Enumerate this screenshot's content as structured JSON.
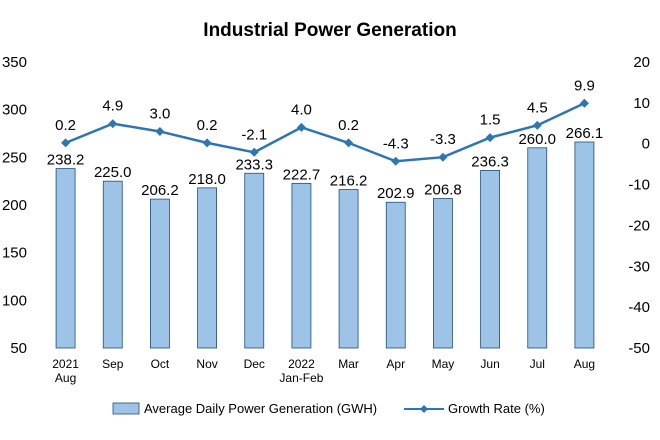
{
  "chart_data": {
    "type": "bar+line",
    "title": "Industrial Power Generation",
    "categories": [
      [
        "2021",
        "Aug"
      ],
      [
        "Sep"
      ],
      [
        "Oct"
      ],
      [
        "Nov"
      ],
      [
        "Dec"
      ],
      [
        "2022",
        "Jan-Feb"
      ],
      [
        "Mar"
      ],
      [
        "Apr"
      ],
      [
        "May"
      ],
      [
        "Jun"
      ],
      [
        "Jul"
      ],
      [
        "Aug"
      ]
    ],
    "series": [
      {
        "name": "Average Daily Power Generation (GWH)",
        "type": "bar",
        "axis": "left",
        "values": [
          238.2,
          225.0,
          206.2,
          218.0,
          233.3,
          222.7,
          216.2,
          202.9,
          206.8,
          236.3,
          260.0,
          266.1
        ],
        "labels": [
          "238.2",
          "225.0",
          "206.2",
          "218.0",
          "233.3",
          "222.7",
          "216.2",
          "202.9",
          "206.8",
          "236.3",
          "260.0",
          "266.1"
        ]
      },
      {
        "name": "Growth Rate (%)",
        "type": "line",
        "axis": "right",
        "values": [
          0.2,
          4.9,
          3.0,
          0.2,
          -2.1,
          4.0,
          0.2,
          -4.3,
          -3.3,
          1.5,
          4.5,
          9.9
        ],
        "labels": [
          "0.2",
          "4.9",
          "3.0",
          "0.2",
          "-2.1",
          "4.0",
          "0.2",
          "-4.3",
          "-3.3",
          "1.5",
          "4.5",
          "9.9"
        ]
      }
    ],
    "y_left": {
      "ylim": [
        50,
        350
      ],
      "ticks": [
        50,
        100,
        150,
        200,
        250,
        300,
        350
      ]
    },
    "y_right": {
      "ylim": [
        -50,
        20
      ],
      "ticks": [
        -50,
        -40,
        -30,
        -20,
        -10,
        0,
        10,
        20
      ]
    },
    "grid": false,
    "legend_position": "bottom",
    "colors": {
      "bar_fill": "#9dc3e6",
      "bar_stroke": "#1f4e79",
      "line": "#2e75b6"
    }
  }
}
